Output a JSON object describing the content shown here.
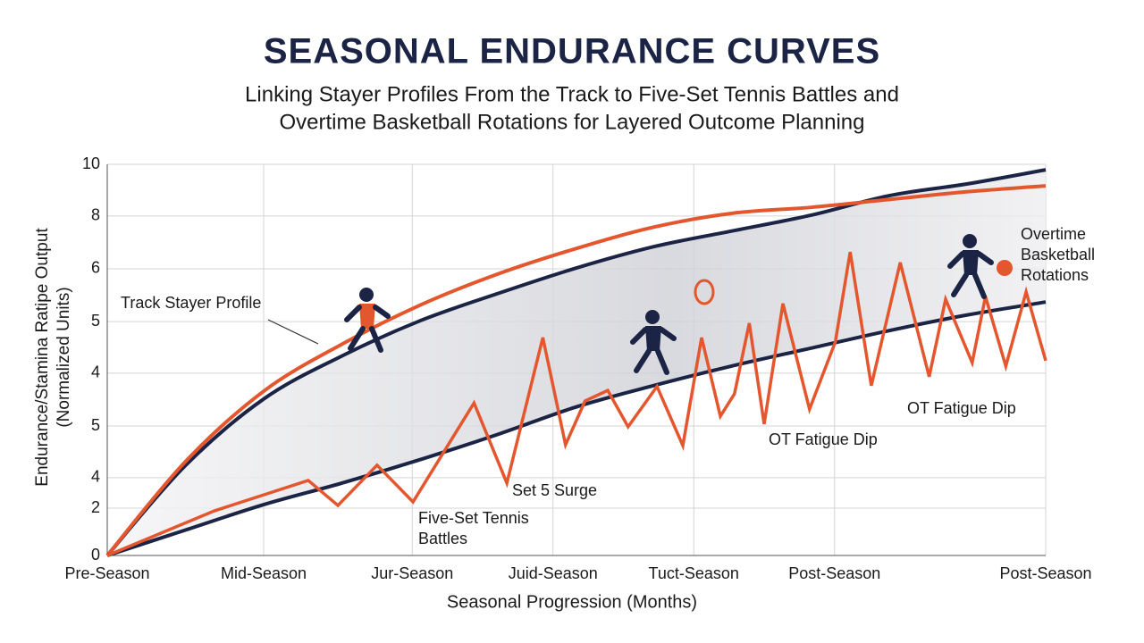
{
  "chart_data": {
    "type": "line",
    "title": "SEASONAL ENDURANCE CURVES",
    "subtitle": [
      "Linking Stayer Profiles From the Track to Five-Set Tennis Battles and",
      "Overtime Basketball Rotations for Layered Outcome Planning"
    ],
    "y_label": [
      "Endurance/Stamina Ratipe Output",
      "(Normalized Units)"
    ],
    "x_label": "Seasonal Progression (Months)",
    "xlim": [
      0,
      12
    ],
    "ylim": [
      0,
      10
    ],
    "grid": true,
    "xticks": [
      {
        "value": 0,
        "label": "Pre-Season"
      },
      {
        "value": 2,
        "label": "Mid-Season"
      },
      {
        "value": 3.9,
        "label": "Jur-Season"
      },
      {
        "value": 5.7,
        "label": "Juid-Season"
      },
      {
        "value": 7.5,
        "label": "Tuct-Season"
      },
      {
        "value": 9.3,
        "label": "Post-Season"
      },
      {
        "value": 12,
        "label": "Post-Season"
      }
    ],
    "yticks": [
      0,
      {
        "value": 1.21,
        "label": "2"
      },
      {
        "value": 1.99,
        "label": "4"
      },
      {
        "value": 3.31,
        "label": "5"
      },
      {
        "value": 4.66,
        "label": "4"
      },
      {
        "value": 5.98,
        "label": "5"
      },
      {
        "value": 7.33,
        "label": "6"
      },
      {
        "value": 8.68,
        "label": "8"
      },
      10
    ],
    "series": [
      {
        "name": "Track Stayer Profile",
        "color": "#1b2445",
        "smooth": true,
        "x": [
          0,
          1,
          2,
          3,
          4,
          5,
          6,
          7,
          8,
          9,
          10,
          11,
          12
        ],
        "values": [
          0,
          2.3,
          4.0,
          5.1,
          6.0,
          6.7,
          7.35,
          7.9,
          8.3,
          8.7,
          9.2,
          9.5,
          9.86
        ]
      },
      {
        "name": "Track Stayer Profile",
        "color": "#e4572e",
        "smooth": true,
        "x": [
          0,
          1,
          2,
          3,
          4,
          5,
          6,
          7,
          8,
          9,
          10,
          11,
          12
        ],
        "values": [
          0,
          2.4,
          4.2,
          5.4,
          6.4,
          7.2,
          7.85,
          8.4,
          8.75,
          8.9,
          9.1,
          9.3,
          9.45
        ]
      },
      {
        "name": "Five-Set Tennis Battles",
        "color": "#1b2445",
        "smooth": true,
        "x": [
          0,
          1,
          2,
          3,
          4,
          5,
          6,
          7,
          8,
          9,
          10,
          11,
          12
        ],
        "values": [
          0,
          0.65,
          1.3,
          1.85,
          2.45,
          3.1,
          3.8,
          4.35,
          4.85,
          5.3,
          5.75,
          6.15,
          6.48
        ]
      },
      {
        "name": "Overtime Basketball Rotations",
        "color": "#e4572e",
        "smooth": false,
        "x": [
          0,
          1.37,
          2.57,
          2.95,
          3.45,
          3.91,
          4.69,
          5.11,
          5.57,
          5.86,
          6.11,
          6.4,
          6.66,
          7.03,
          7.36,
          7.6,
          7.84,
          8.02,
          8.21,
          8.4,
          8.64,
          8.98,
          9.31,
          9.5,
          9.77,
          10.14,
          10.51,
          10.72,
          11.06,
          11.23,
          11.49,
          11.75,
          12
        ],
        "values": [
          0,
          1.14,
          1.92,
          1.28,
          2.31,
          1.37,
          3.9,
          1.85,
          5.57,
          2.83,
          3.95,
          4.22,
          3.29,
          4.32,
          2.81,
          5.57,
          3.56,
          4.13,
          5.94,
          3.36,
          6.44,
          3.74,
          5.46,
          7.76,
          4.34,
          7.49,
          4.57,
          6.55,
          4.93,
          6.62,
          4.84,
          6.74,
          4.98
        ]
      }
    ],
    "annotations": [
      {
        "text": [
          "Track Stayer Profile"
        ]
      },
      {
        "text": [
          "Set 5 Surge"
        ]
      },
      {
        "text": [
          "Five-Set Tennis",
          "Battles"
        ]
      },
      {
        "text": [
          "OT Fatigue Dip"
        ]
      },
      {
        "text": [
          "OT Fatigue Dip"
        ]
      },
      {
        "text": [
          "Overtime",
          "Basketball",
          "Rotations"
        ]
      }
    ]
  }
}
